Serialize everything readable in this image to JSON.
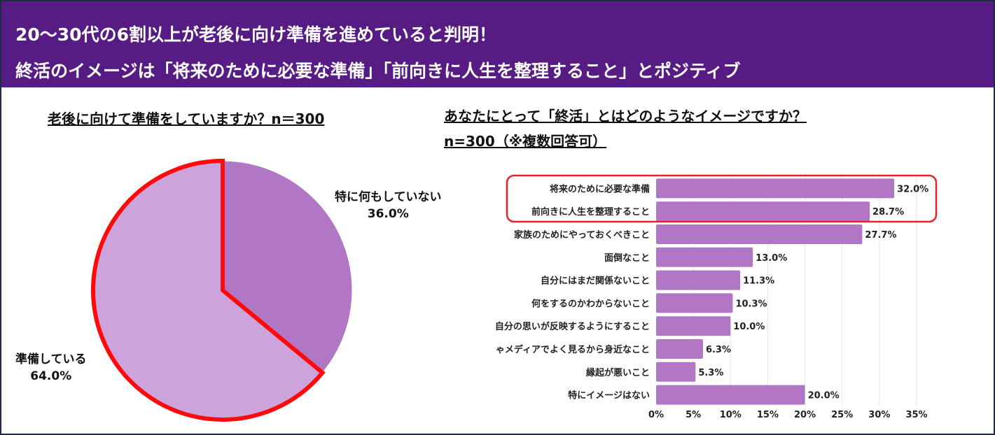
{
  "header": {
    "line1": "20〜30代の6割以上が老後に向け準備を進めていると判明！",
    "line2": "終活のイメージは「将来のために必要な準備」「前向きに人生を整理すること」とポジティブ"
  },
  "colors": {
    "header_bg": "#561c84",
    "bar": "#b176c4",
    "pie_dark": "#b176c4",
    "pie_light": "#cca3da",
    "highlight": "#e8222a"
  },
  "chart_data": [
    {
      "type": "pie",
      "title": "老後に向けて準備をしていますか？n＝300",
      "slices": [
        {
          "label": "特に何もしていない",
          "value": 36.0,
          "value_label": "36.0%",
          "color": "#b176c4"
        },
        {
          "label": "準備している",
          "value": 64.0,
          "value_label": "64.0%",
          "color": "#cca3da",
          "highlighted": true
        }
      ]
    },
    {
      "type": "bar",
      "orientation": "horizontal",
      "title_line1": "あなたにとって「終活」とはどのようなイメージですか？",
      "title_line2": "n=300（※複数回答可）",
      "categories": [
        "将来のために必要な準備",
        "前向きに人生を整理すること",
        "家族のためにやっておくべきこと",
        "面倒なこと",
        "自分にはまだ関係ないこと",
        "何をするのかわからないこと",
        "自分の思いが反映するようにすること",
        "ゃメディアでよく見るから身近なこと",
        "縁起が悪いこと",
        "特にイメージはない"
      ],
      "values": [
        32.0,
        28.7,
        27.7,
        13.0,
        11.3,
        10.3,
        10.0,
        6.3,
        5.3,
        20.0
      ],
      "value_labels": [
        "32.0%",
        "28.7%",
        "27.7%",
        "13.0%",
        "11.3%",
        "10.3%",
        "10.0%",
        "6.3%",
        "5.3%",
        "20.0%"
      ],
      "xlim": [
        0,
        35
      ],
      "xticks": [
        "0%",
        "5%",
        "10%",
        "15%",
        "20%",
        "25%",
        "30%",
        "35%"
      ],
      "grid": true,
      "highlighted_categories": [
        0,
        1
      ]
    }
  ]
}
